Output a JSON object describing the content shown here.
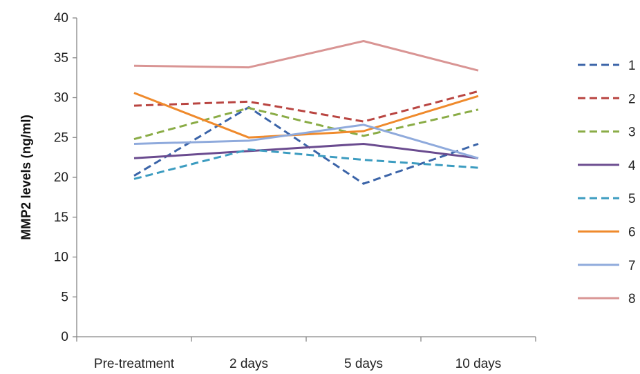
{
  "chart_data": {
    "type": "line",
    "title": "",
    "xlabel": "",
    "ylabel": "MMP2 levels (ng/ml)",
    "categories": [
      "Pre-treatment",
      "2 days",
      "5 days",
      "10 days"
    ],
    "ylim": [
      0,
      40
    ],
    "yticks": [
      0,
      5,
      10,
      15,
      20,
      25,
      30,
      35,
      40
    ],
    "grid": false,
    "legend_position": "right",
    "series": [
      {
        "name": "1",
        "values": [
          20.2,
          28.8,
          19.2,
          24.2
        ],
        "color": "#3b64a8",
        "dash": true
      },
      {
        "name": "2",
        "values": [
          29.0,
          29.5,
          27.0,
          30.8
        ],
        "color": "#b94541",
        "dash": true
      },
      {
        "name": "3",
        "values": [
          24.8,
          28.7,
          25.2,
          28.5
        ],
        "color": "#8aac46",
        "dash": true
      },
      {
        "name": "4",
        "values": [
          22.4,
          23.3,
          24.2,
          22.4
        ],
        "color": "#6a4b8f",
        "dash": false
      },
      {
        "name": "5",
        "values": [
          19.8,
          23.5,
          22.2,
          21.2
        ],
        "color": "#3c9cc0",
        "dash": true
      },
      {
        "name": "6",
        "values": [
          30.6,
          25.0,
          25.8,
          30.2
        ],
        "color": "#ef8a2c",
        "dash": false
      },
      {
        "name": "7",
        "values": [
          24.2,
          24.6,
          26.6,
          22.4
        ],
        "color": "#8faadc",
        "dash": false
      },
      {
        "name": "8",
        "values": [
          34.0,
          33.8,
          37.1,
          33.4
        ],
        "color": "#d99594",
        "dash": false
      }
    ]
  }
}
